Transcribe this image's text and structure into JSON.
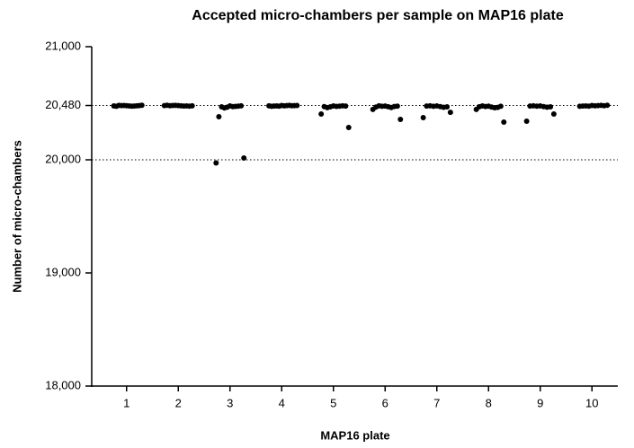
{
  "chart_data": {
    "type": "strip",
    "title": "Accepted micro-chambers per sample on MAP16 plate",
    "x_label": "MAP16 plate",
    "y_label": "Number of micro-chambers",
    "categories": [
      "1",
      "2",
      "3",
      "4",
      "5",
      "6",
      "7",
      "8",
      "9",
      "10"
    ],
    "values": [
      [
        20478,
        20476,
        20480,
        20474,
        20479,
        20475,
        20481,
        20477,
        20473,
        20479,
        20476,
        20482
      ],
      [
        20479,
        20477,
        20481,
        20475,
        20480,
        20476,
        20478,
        20474,
        20482,
        20477,
        20479
      ],
      [
        20476,
        20470,
        20465,
        20472,
        20458,
        20474,
        20468,
        20477,
        20381,
        20016,
        19972
      ],
      [
        20480,
        20477,
        20474,
        20479,
        20476,
        20481,
        20475,
        20478,
        20473,
        20479,
        20477,
        20480
      ],
      [
        20476,
        20472,
        20468,
        20474,
        20461,
        20477,
        20470,
        20475,
        20405,
        20286
      ],
      [
        20475,
        20469,
        20473,
        20462,
        20477,
        20471,
        20466,
        20474,
        20445,
        20357
      ],
      [
        20476,
        20470,
        20473,
        20464,
        20477,
        20468,
        20475,
        20420,
        20373
      ],
      [
        20474,
        20466,
        20471,
        20460,
        20476,
        20463,
        20469,
        20473,
        20445,
        20333
      ],
      [
        20476,
        20470,
        20474,
        20465,
        20477,
        20468,
        20475,
        20405,
        20341
      ],
      [
        20480,
        20477,
        20474,
        20479,
        20476,
        20481,
        20475,
        20478,
        20473,
        20482
      ]
    ],
    "color": "#000000",
    "ylim": [
      18000,
      21000
    ],
    "yticks": [
      {
        "value": 18000,
        "label": "18,000"
      },
      {
        "value": 19000,
        "label": "19,000"
      },
      {
        "value": 20000,
        "label": "20,000"
      },
      {
        "value": 20480,
        "label": "20,480"
      },
      {
        "value": 21000,
        "label": "21,000"
      }
    ],
    "reference_lines": [
      20480,
      20000
    ]
  }
}
